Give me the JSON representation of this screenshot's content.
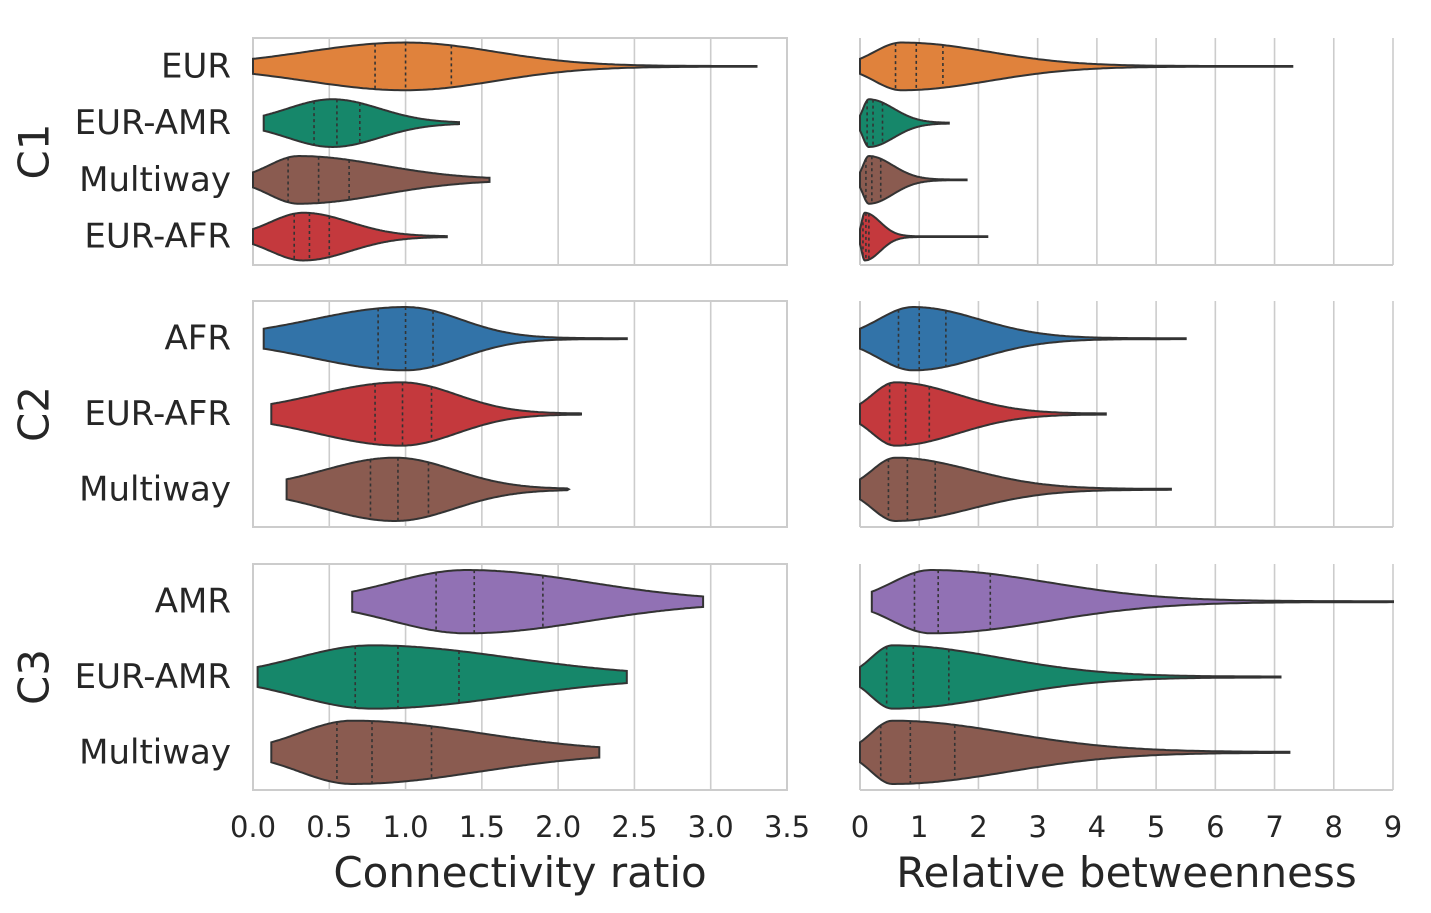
{
  "chart_data": {
    "type": "violin",
    "layout": "3 rows (groups) x 2 columns (metrics), inner quartile lines",
    "grid": "vertical gridlines on",
    "colors": {
      "EUR": "#e0823c",
      "EUR-AMR": "#16876a",
      "Multiway": "#8a5b50",
      "EUR-AFR": "#c4393d",
      "AFR": "#3273a8",
      "AMR": "#9171b4"
    },
    "columns": [
      {
        "xlabel": "Connectivity ratio",
        "xlim": [
          0,
          3.5
        ],
        "ticks": [
          0,
          0.5,
          1,
          1.5,
          2,
          2.5,
          3,
          3.5
        ],
        "tick_labels": [
          "0.0",
          "0.5",
          "1.0",
          "1.5",
          "2.0",
          "2.5",
          "3.0",
          "3.5"
        ]
      },
      {
        "xlabel": "Relative betweenness",
        "xlim": [
          0,
          9
        ],
        "ticks": [
          0,
          1,
          2,
          3,
          4,
          5,
          6,
          7,
          8,
          9
        ],
        "tick_labels": [
          "0",
          "1",
          "2",
          "3",
          "4",
          "5",
          "6",
          "7",
          "8",
          "9"
        ]
      }
    ],
    "rows": [
      {
        "group": "C1",
        "categories": [
          "EUR",
          "EUR-AMR",
          "Multiway",
          "EUR-AFR"
        ],
        "panels": [
          {
            "violins": [
              {
                "label": "EUR",
                "min": 0.0,
                "max": 3.3,
                "mode": 1.0,
                "q1": 0.8,
                "median": 1.0,
                "q3": 1.3
              },
              {
                "label": "EUR-AMR",
                "min": 0.07,
                "max": 1.35,
                "mode": 0.52,
                "q1": 0.4,
                "median": 0.55,
                "q3": 0.7
              },
              {
                "label": "Multiway",
                "min": 0.0,
                "max": 1.55,
                "mode": 0.3,
                "q1": 0.23,
                "median": 0.43,
                "q3": 0.63
              },
              {
                "label": "EUR-AFR",
                "min": 0.0,
                "max": 1.27,
                "mode": 0.33,
                "q1": 0.27,
                "median": 0.37,
                "q3": 0.5
              }
            ]
          },
          {
            "violins": [
              {
                "label": "EUR",
                "min": 0.0,
                "max": 7.3,
                "mode": 0.7,
                "q1": 0.6,
                "median": 0.95,
                "q3": 1.4
              },
              {
                "label": "EUR-AMR",
                "min": 0.0,
                "max": 1.5,
                "mode": 0.15,
                "q1": 0.12,
                "median": 0.22,
                "q3": 0.38
              },
              {
                "label": "Multiway",
                "min": 0.0,
                "max": 1.8,
                "mode": 0.15,
                "q1": 0.1,
                "median": 0.2,
                "q3": 0.35
              },
              {
                "label": "EUR-AFR",
                "min": 0.0,
                "max": 2.15,
                "mode": 0.08,
                "q1": 0.05,
                "median": 0.1,
                "q3": 0.15
              }
            ]
          }
        ]
      },
      {
        "group": "C2",
        "categories": [
          "AFR",
          "EUR-AFR",
          "Multiway"
        ],
        "panels": [
          {
            "violins": [
              {
                "label": "AFR",
                "min": 0.07,
                "max": 2.45,
                "mode": 1.0,
                "q1": 0.82,
                "median": 1.0,
                "q3": 1.18
              },
              {
                "label": "EUR-AFR",
                "min": 0.12,
                "max": 2.15,
                "mode": 0.97,
                "q1": 0.8,
                "median": 0.98,
                "q3": 1.17
              },
              {
                "label": "Multiway",
                "min": 0.22,
                "max": 2.07,
                "mode": 0.93,
                "q1": 0.77,
                "median": 0.95,
                "q3": 1.15
              }
            ]
          },
          {
            "violins": [
              {
                "label": "AFR",
                "min": 0.0,
                "max": 5.5,
                "mode": 0.9,
                "q1": 0.65,
                "median": 1.0,
                "q3": 1.45
              },
              {
                "label": "EUR-AFR",
                "min": 0.0,
                "max": 4.15,
                "mode": 0.6,
                "q1": 0.5,
                "median": 0.77,
                "q3": 1.17
              },
              {
                "label": "Multiway",
                "min": 0.0,
                "max": 5.25,
                "mode": 0.6,
                "q1": 0.48,
                "median": 0.8,
                "q3": 1.27
              }
            ]
          }
        ]
      },
      {
        "group": "C3",
        "categories": [
          "AMR",
          "EUR-AMR",
          "Multiway"
        ],
        "panels": [
          {
            "violins": [
              {
                "label": "AMR",
                "min": 0.65,
                "max": 2.95,
                "mode": 1.4,
                "q1": 1.2,
                "median": 1.45,
                "q3": 1.9
              },
              {
                "label": "EUR-AMR",
                "min": 0.03,
                "max": 2.45,
                "mode": 0.78,
                "q1": 0.67,
                "median": 0.95,
                "q3": 1.35
              },
              {
                "label": "Multiway",
                "min": 0.12,
                "max": 2.27,
                "mode": 0.65,
                "q1": 0.55,
                "median": 0.78,
                "q3": 1.17
              }
            ]
          },
          {
            "violins": [
              {
                "label": "AMR",
                "min": 0.2,
                "max": 9.0,
                "mode": 1.2,
                "q1": 0.92,
                "median": 1.32,
                "q3": 2.2
              },
              {
                "label": "EUR-AMR",
                "min": 0.0,
                "max": 7.1,
                "mode": 0.55,
                "q1": 0.45,
                "median": 0.9,
                "q3": 1.5
              },
              {
                "label": "Multiway",
                "min": 0.0,
                "max": 7.25,
                "mode": 0.55,
                "q1": 0.35,
                "median": 0.85,
                "q3": 1.6
              }
            ]
          }
        ]
      }
    ]
  }
}
